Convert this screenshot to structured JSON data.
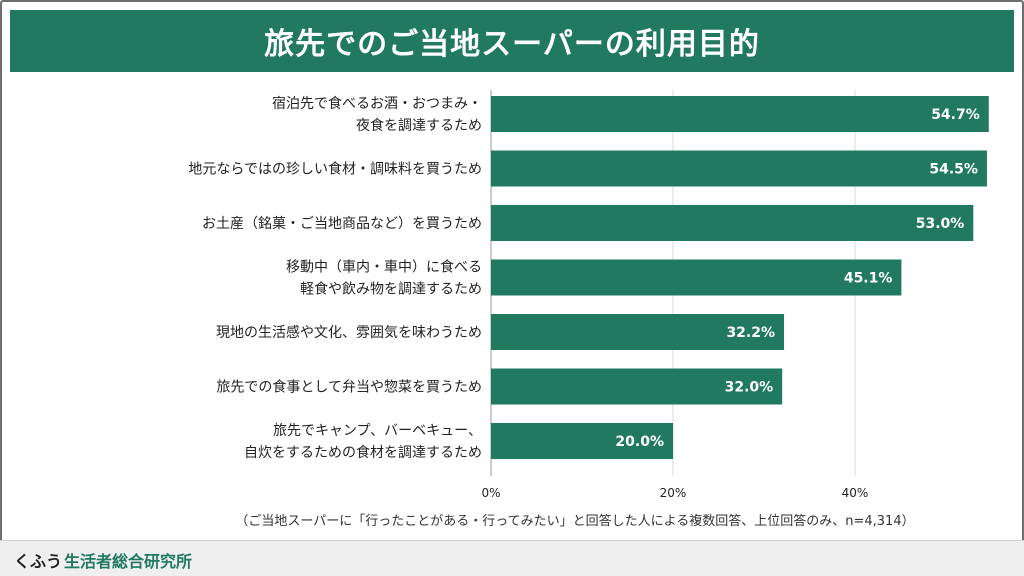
{
  "title": "旅先でのご当地スーパーの利用目的",
  "note": "（ご当地スーパーに「行ったことがある・行ってみたい」と回答した人による複数回答、上位回答のみ、n=4,314）",
  "footer": {
    "brand": "くふう",
    "institute": "生活者総合研究所"
  },
  "colors": {
    "bar": "#217a5f",
    "title_bg": "#217a5f",
    "grid": "#d9d9d9",
    "label": "#222222"
  },
  "chart_data": {
    "type": "bar",
    "orientation": "horizontal",
    "categories": [
      [
        "宿泊先で食べるお酒・おつまみ・",
        "夜食を調達するため"
      ],
      [
        "地元ならではの珍しい食材・調味料を買うため"
      ],
      [
        "お土産（銘菓・ご当地商品など）を買うため"
      ],
      [
        "移動中（車内・車中）に食べる",
        "軽食や飲み物を調達するため"
      ],
      [
        "現地の生活感や文化、雰囲気を味わうため"
      ],
      [
        "旅先での食事として弁当や惣菜を買うため"
      ],
      [
        "旅先でキャンプ、バーベキュー、",
        "自炊をするための食材を調達するため"
      ]
    ],
    "values": [
      54.7,
      54.5,
      53.0,
      45.1,
      32.2,
      32.0,
      20.0
    ],
    "value_labels": [
      "54.7%",
      "54.5%",
      "53.0%",
      "45.1%",
      "32.2%",
      "32.0%",
      "20.0%"
    ],
    "xlim": [
      0,
      60
    ],
    "xticks": [
      0,
      20,
      40
    ],
    "xtick_labels": [
      "0%",
      "20%",
      "40%"
    ],
    "grid": true
  }
}
